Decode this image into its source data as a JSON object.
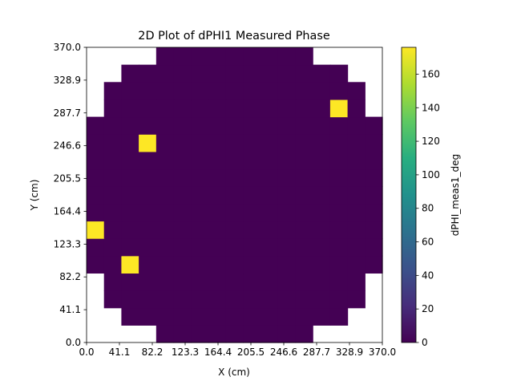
{
  "chart_data": {
    "type": "heatmap",
    "title": "2D Plot of dPHI1 Measured Phase",
    "xlabel": "X (cm)",
    "ylabel": "Y (cm)",
    "colorbar_label": "dPHI_meas1_deg",
    "colormap": "viridis",
    "xlim": [
      0.0,
      370.0
    ],
    "ylim": [
      0.0,
      370.0
    ],
    "nx": 17,
    "ny": 17,
    "x_ticks": [
      "0.0",
      "41.1",
      "82.2",
      "123.3",
      "164.4",
      "205.5",
      "246.6",
      "287.7",
      "328.9",
      "370.0"
    ],
    "y_ticks": [
      "0.0",
      "41.1",
      "82.2",
      "123.3",
      "164.4",
      "205.5",
      "246.6",
      "287.7",
      "328.9",
      "370.0"
    ],
    "colorbar_range": [
      0,
      176
    ],
    "colorbar_ticks": [
      "0",
      "20",
      "40",
      "60",
      "80",
      "100",
      "120",
      "140",
      "160"
    ],
    "row_extents": [
      [
        4,
        12
      ],
      [
        2,
        14
      ],
      [
        1,
        15
      ],
      [
        1,
        15
      ],
      [
        0,
        16
      ],
      [
        0,
        16
      ],
      [
        0,
        16
      ],
      [
        0,
        16
      ],
      [
        0,
        16
      ],
      [
        0,
        16
      ],
      [
        0,
        16
      ],
      [
        0,
        16
      ],
      [
        0,
        16
      ],
      [
        1,
        15
      ],
      [
        1,
        15
      ],
      [
        2,
        14
      ],
      [
        4,
        12
      ]
    ],
    "base_value": 0,
    "hot_cells": [
      {
        "col": 14,
        "row": 13,
        "value": 176
      },
      {
        "col": 3,
        "row": 11,
        "value": 176
      },
      {
        "col": 0,
        "row": 6,
        "value": 176
      },
      {
        "col": 2,
        "row": 4,
        "value": 176
      }
    ]
  }
}
